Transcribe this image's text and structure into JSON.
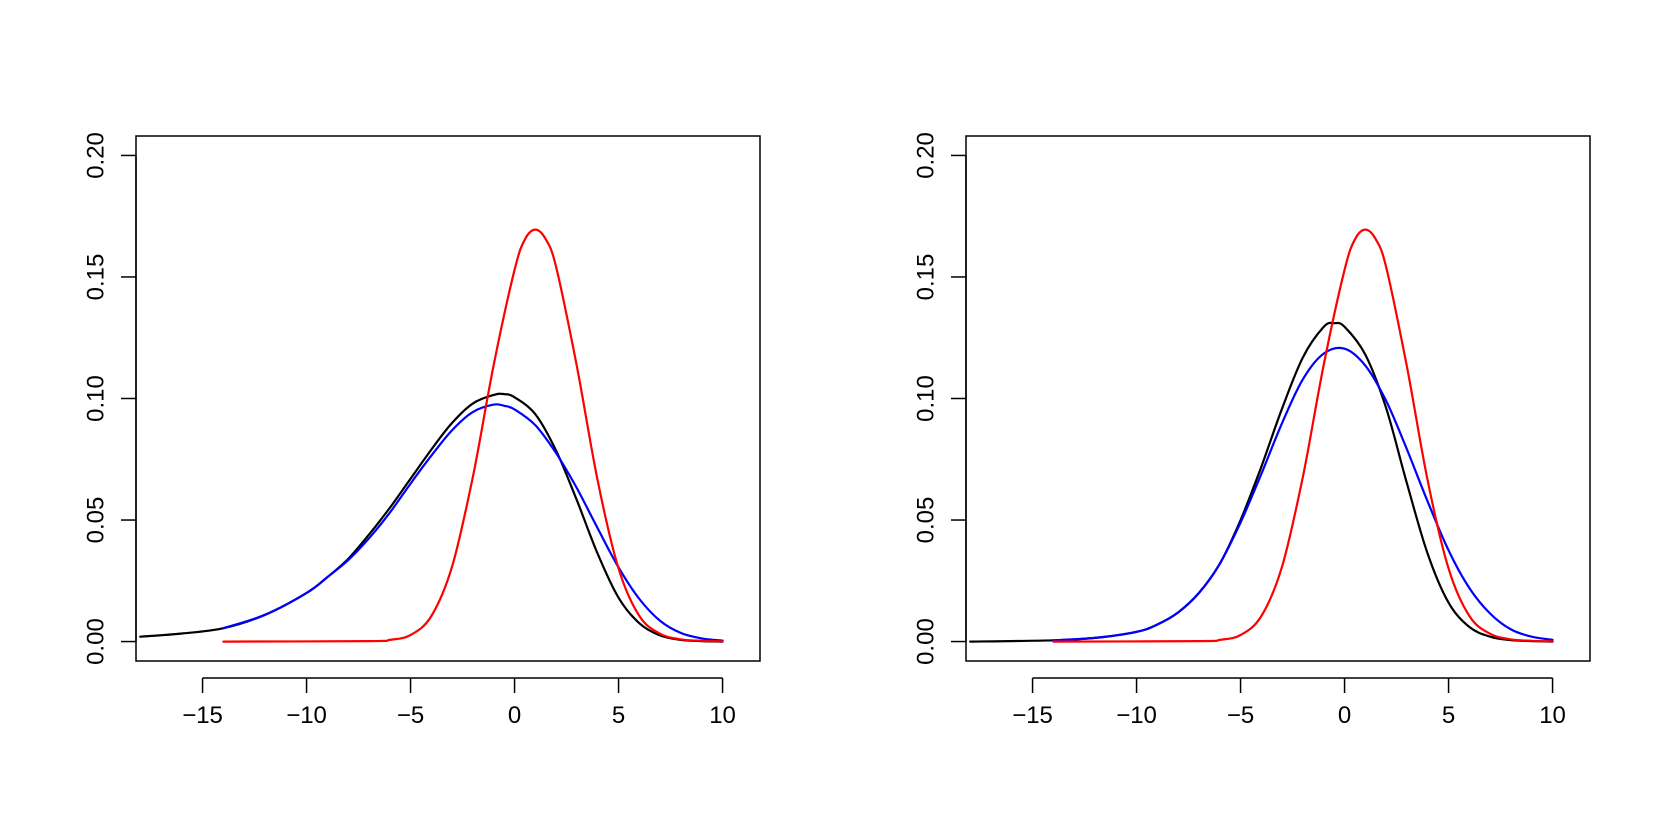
{
  "chart_data": [
    {
      "type": "line",
      "title": "",
      "xlabel": "",
      "ylabel": "",
      "xlim": [
        -18.2,
        11.8
      ],
      "ylim": [
        -0.008,
        0.208
      ],
      "xticks": [
        -15,
        -10,
        -5,
        0,
        5,
        10
      ],
      "xtick_labels": [
        "−15",
        "−10",
        "−5",
        "0",
        "5",
        "10"
      ],
      "yticks": [
        0,
        0.05,
        0.1,
        0.15,
        0.2
      ],
      "ytick_labels": [
        "0.00",
        "0.05",
        "0.10",
        "0.15",
        "0.20"
      ],
      "grid": false,
      "series": [
        {
          "color": "#000000",
          "x": [
            -18,
            -16,
            -14,
            -12,
            -10,
            -9,
            -8,
            -7,
            -6,
            -5,
            -4,
            -3,
            -2,
            -1,
            -0.5,
            0,
            1,
            2,
            3,
            4,
            5,
            6,
            7,
            8,
            9,
            10
          ],
          "y": [
            0.002,
            0.0033,
            0.0055,
            0.011,
            0.02,
            0.0265,
            0.034,
            0.044,
            0.055,
            0.067,
            0.079,
            0.09,
            0.098,
            0.1015,
            0.1018,
            0.1005,
            0.0935,
            0.0785,
            0.058,
            0.036,
            0.018,
            0.0075,
            0.0025,
            0.0007,
            0.0002,
            0.0
          ]
        },
        {
          "color": "#0000ff",
          "x": [
            -14,
            -12,
            -10,
            -9,
            -8,
            -7,
            -6,
            -5,
            -4,
            -3,
            -2,
            -1,
            -0.5,
            0,
            1,
            2,
            3,
            4,
            5,
            6,
            7,
            8,
            9,
            10
          ],
          "y": [
            0.0055,
            0.011,
            0.02,
            0.0265,
            0.0335,
            0.0425,
            0.053,
            0.065,
            0.0765,
            0.087,
            0.0945,
            0.0975,
            0.097,
            0.0955,
            0.089,
            0.0775,
            0.063,
            0.0465,
            0.0305,
            0.0175,
            0.0085,
            0.0035,
            0.0013,
            0.0004
          ]
        },
        {
          "color": "#ff0000",
          "x": [
            -14,
            -7,
            -6,
            -5,
            -4,
            -3,
            -2,
            -1,
            0,
            0.5,
            1,
            1.5,
            2,
            3,
            4,
            5,
            6,
            7,
            8,
            9,
            10
          ],
          "y": [
            0.0,
            0.0002,
            0.0007,
            0.0027,
            0.0105,
            0.031,
            0.068,
            0.114,
            0.153,
            0.1655,
            0.1695,
            0.1655,
            0.154,
            0.113,
            0.066,
            0.03,
            0.0105,
            0.0032,
            0.0009,
            0.0003,
            0.0001
          ]
        }
      ]
    },
    {
      "type": "line",
      "title": "",
      "xlabel": "",
      "ylabel": "",
      "xlim": [
        -18.2,
        11.8
      ],
      "ylim": [
        -0.008,
        0.208
      ],
      "xticks": [
        -15,
        -10,
        -5,
        0,
        5,
        10
      ],
      "xtick_labels": [
        "−15",
        "−10",
        "−5",
        "0",
        "5",
        "10"
      ],
      "yticks": [
        0,
        0.05,
        0.1,
        0.15,
        0.2
      ],
      "ytick_labels": [
        "0.00",
        "0.05",
        "0.10",
        "0.15",
        "0.20"
      ],
      "grid": false,
      "series": [
        {
          "color": "#000000",
          "x": [
            -18,
            -14,
            -12,
            -10,
            -9,
            -8,
            -7,
            -6,
            -5,
            -4,
            -3,
            -2,
            -1,
            -0.5,
            0,
            1,
            2,
            3,
            4,
            5,
            6,
            7,
            8,
            9,
            10
          ],
          "y": [
            0.0,
            0.0005,
            0.0015,
            0.004,
            0.007,
            0.012,
            0.02,
            0.032,
            0.05,
            0.072,
            0.096,
            0.117,
            0.1295,
            0.131,
            0.1295,
            0.118,
            0.096,
            0.065,
            0.036,
            0.016,
            0.006,
            0.002,
            0.0006,
            0.0002,
            0.0
          ]
        },
        {
          "color": "#0000ff",
          "x": [
            -14,
            -12,
            -10,
            -9,
            -8,
            -7,
            -6,
            -5,
            -4,
            -3,
            -2,
            -1,
            0,
            1,
            2,
            3,
            4,
            5,
            6,
            7,
            8,
            9,
            10
          ],
          "y": [
            0.0005,
            0.0015,
            0.004,
            0.007,
            0.012,
            0.02,
            0.032,
            0.049,
            0.069,
            0.09,
            0.108,
            0.1185,
            0.1205,
            0.1135,
            0.099,
            0.079,
            0.0575,
            0.0375,
            0.022,
            0.0115,
            0.005,
            0.002,
            0.0007
          ]
        },
        {
          "color": "#ff0000",
          "x": [
            -14,
            -7,
            -6,
            -5,
            -4,
            -3,
            -2,
            -1,
            0,
            0.5,
            1,
            1.5,
            2,
            3,
            4,
            5,
            6,
            7,
            8,
            9,
            10
          ],
          "y": [
            0.0,
            0.0002,
            0.0007,
            0.0027,
            0.0105,
            0.031,
            0.068,
            0.114,
            0.153,
            0.1655,
            0.1695,
            0.1655,
            0.154,
            0.113,
            0.066,
            0.03,
            0.0105,
            0.0032,
            0.0009,
            0.0003,
            0.0001
          ]
        }
      ]
    }
  ]
}
